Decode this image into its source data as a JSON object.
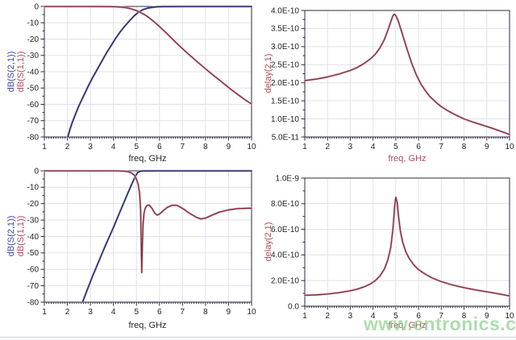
{
  "watermark": {
    "text": "www.cntronics.com",
    "color": "#92d192"
  },
  "palette": {
    "trace_blue": "#23235e",
    "trace_blue_halo": "#a9afd6",
    "trace_red": "#7a3240",
    "trace_red_halo": "#e9b4c1",
    "grid": "#e0e0ee",
    "frame": "#2b2b3d",
    "label_blue": "#4343a8",
    "label_red": "#b04a5a"
  },
  "chart_data": [
    {
      "name": "highpass-s-parameters",
      "type": "line",
      "title": "",
      "xlabel": "freq, GHz",
      "xlabel_color": "dark",
      "ylabels": [
        "dB(S(2,1))",
        "dB(S(1,1))"
      ],
      "xlim": [
        1,
        10
      ],
      "ylim": [
        -80,
        0
      ],
      "grid": true,
      "legend_position": "rotated-y-axis",
      "xticks": [
        {
          "v": 1,
          "label": "1"
        },
        {
          "v": 2,
          "label": "2"
        },
        {
          "v": 3,
          "label": "3"
        },
        {
          "v": 4,
          "label": "4"
        },
        {
          "v": 5,
          "label": "5"
        },
        {
          "v": 6,
          "label": "6"
        },
        {
          "v": 7,
          "label": "7"
        },
        {
          "v": 8,
          "label": "8"
        },
        {
          "v": 9,
          "label": "9"
        },
        {
          "v": 10,
          "label": "10"
        }
      ],
      "yticks": [
        {
          "v": 0,
          "label": "0"
        },
        {
          "v": -10,
          "label": "-10"
        },
        {
          "v": -20,
          "label": "-20"
        },
        {
          "v": -30,
          "label": "-30"
        },
        {
          "v": -40,
          "label": "-40"
        },
        {
          "v": -50,
          "label": "-50"
        },
        {
          "v": -60,
          "label": "-60"
        },
        {
          "v": -70,
          "label": "-70"
        },
        {
          "v": -80,
          "label": "-80"
        }
      ],
      "series": [
        {
          "name": "dB(S(2,1))",
          "color": "#23235e",
          "halo": "#a9afd6",
          "points": [
            [
              2.02,
              -80
            ],
            [
              2.1,
              -76
            ],
            [
              2.2,
              -71.5
            ],
            [
              2.35,
              -66
            ],
            [
              2.5,
              -61
            ],
            [
              2.7,
              -55
            ],
            [
              2.9,
              -49
            ],
            [
              3.1,
              -43.5
            ],
            [
              3.3,
              -38.5
            ],
            [
              3.5,
              -33.5
            ],
            [
              3.7,
              -28.5
            ],
            [
              3.9,
              -24
            ],
            [
              4.1,
              -19.5
            ],
            [
              4.3,
              -15.5
            ],
            [
              4.5,
              -12
            ],
            [
              4.7,
              -8.8
            ],
            [
              4.9,
              -5.8
            ],
            [
              5.1,
              -3.4
            ],
            [
              5.3,
              -1.9
            ],
            [
              5.5,
              -1
            ],
            [
              5.7,
              -0.5
            ],
            [
              5.9,
              -0.2
            ],
            [
              6.2,
              -0.1
            ],
            [
              7,
              -0.05
            ],
            [
              10,
              -0.05
            ]
          ]
        },
        {
          "name": "dB(S(1,1))",
          "color": "#7a3240",
          "halo": "#e9b4c1",
          "points": [
            [
              1,
              -0.05
            ],
            [
              3,
              -0.05
            ],
            [
              3.8,
              -0.1
            ],
            [
              4.1,
              -0.2
            ],
            [
              4.35,
              -0.45
            ],
            [
              4.55,
              -0.8
            ],
            [
              4.75,
              -1.4
            ],
            [
              4.95,
              -2.3
            ],
            [
              5.15,
              -3.5
            ],
            [
              5.35,
              -5
            ],
            [
              5.55,
              -6.9
            ],
            [
              5.75,
              -9.2
            ],
            [
              5.95,
              -11.7
            ],
            [
              6.15,
              -14.3
            ],
            [
              6.35,
              -17
            ],
            [
              6.55,
              -19.8
            ],
            [
              6.8,
              -23.2
            ],
            [
              7.05,
              -26.5
            ],
            [
              7.35,
              -30.3
            ],
            [
              7.65,
              -34
            ],
            [
              8,
              -38.2
            ],
            [
              8.35,
              -42.3
            ],
            [
              8.7,
              -46.2
            ],
            [
              9.05,
              -50.2
            ],
            [
              9.4,
              -54
            ],
            [
              9.7,
              -57
            ],
            [
              10,
              -59.8
            ]
          ]
        }
      ]
    },
    {
      "name": "highpass-group-delay",
      "type": "line",
      "title": "",
      "xlabel": "freq, GHz",
      "xlabel_color": "red",
      "ylabels": [
        "delay(2,1)"
      ],
      "xlim": [
        1,
        10
      ],
      "ylim": [
        5e-11,
        4e-10
      ],
      "grid": true,
      "legend_position": "rotated-y-axis",
      "xticks": [
        {
          "v": 1,
          "label": "1"
        },
        {
          "v": 2,
          "label": "2"
        },
        {
          "v": 3,
          "label": "3"
        },
        {
          "v": 4,
          "label": "4"
        },
        {
          "v": 5,
          "label": "5"
        },
        {
          "v": 6,
          "label": "6"
        },
        {
          "v": 7,
          "label": "7"
        },
        {
          "v": 8,
          "label": "8"
        },
        {
          "v": 9,
          "label": "9"
        },
        {
          "v": 10,
          "label": "10"
        }
      ],
      "yticks": [
        {
          "v": 4e-10,
          "label": "4.0E-10"
        },
        {
          "v": 3.5e-10,
          "label": "3.5E-10"
        },
        {
          "v": 3e-10,
          "label": "3.0E-10"
        },
        {
          "v": 2.5e-10,
          "label": "2.5E-10"
        },
        {
          "v": 2e-10,
          "label": "2.0E-10"
        },
        {
          "v": 1.5e-10,
          "label": "1.5E-10"
        },
        {
          "v": 1e-10,
          "label": "1.0E-10"
        },
        {
          "v": 5e-11,
          "label": "5.0E-11"
        }
      ],
      "series": [
        {
          "name": "delay(2,1)",
          "color": "#7a3240",
          "halo": "#e9b4c1",
          "points": [
            [
              1,
              2.06e-10
            ],
            [
              1.5,
              2.1e-10
            ],
            [
              2,
              2.16e-10
            ],
            [
              2.5,
              2.24e-10
            ],
            [
              3,
              2.34e-10
            ],
            [
              3.3,
              2.42e-10
            ],
            [
              3.6,
              2.53e-10
            ],
            [
              3.9,
              2.67e-10
            ],
            [
              4.1,
              2.79e-10
            ],
            [
              4.3,
              2.96e-10
            ],
            [
              4.5,
              3.2e-10
            ],
            [
              4.65,
              3.45e-10
            ],
            [
              4.77,
              3.67e-10
            ],
            [
              4.87,
              3.85e-10
            ],
            [
              4.93,
              3.9e-10
            ],
            [
              5.0,
              3.86e-10
            ],
            [
              5.1,
              3.73e-10
            ],
            [
              5.2,
              3.53e-10
            ],
            [
              5.35,
              3.22e-10
            ],
            [
              5.5,
              2.92e-10
            ],
            [
              5.7,
              2.54e-10
            ],
            [
              5.9,
              2.22e-10
            ],
            [
              6.1,
              1.97e-10
            ],
            [
              6.3,
              1.78e-10
            ],
            [
              6.5,
              1.62e-10
            ],
            [
              6.8,
              1.44e-10
            ],
            [
              7,
              1.34e-10
            ],
            [
              7.3,
              1.22e-10
            ],
            [
              7.6,
              1.12e-10
            ],
            [
              8,
              1e-10
            ],
            [
              8.4,
              9.1e-11
            ],
            [
              8.8,
              8.3e-11
            ],
            [
              9.2,
              7.5e-11
            ],
            [
              9.6,
              6.6e-11
            ],
            [
              10,
              5.7e-11
            ]
          ]
        }
      ]
    },
    {
      "name": "bandpass-s-parameters",
      "type": "line",
      "title": "",
      "xlabel": "freq, GHz",
      "xlabel_color": "dark",
      "ylabels": [
        "dB(S(2,1))",
        "dB(S(1,1))"
      ],
      "xlim": [
        1,
        10
      ],
      "ylim": [
        -80,
        0
      ],
      "grid": true,
      "legend_position": "rotated-y-axis",
      "xticks": [
        {
          "v": 1,
          "label": "1"
        },
        {
          "v": 2,
          "label": "2"
        },
        {
          "v": 3,
          "label": "3"
        },
        {
          "v": 4,
          "label": "4"
        },
        {
          "v": 5,
          "label": "5"
        },
        {
          "v": 6,
          "label": "6"
        },
        {
          "v": 7,
          "label": "7"
        },
        {
          "v": 8,
          "label": "8"
        },
        {
          "v": 9,
          "label": "9"
        },
        {
          "v": 10,
          "label": "10"
        }
      ],
      "yticks": [
        {
          "v": 0,
          "label": "0"
        },
        {
          "v": -10,
          "label": "-10"
        },
        {
          "v": -20,
          "label": "-20"
        },
        {
          "v": -30,
          "label": "-30"
        },
        {
          "v": -40,
          "label": "-40"
        },
        {
          "v": -50,
          "label": "-50"
        },
        {
          "v": -60,
          "label": "-60"
        },
        {
          "v": -70,
          "label": "-70"
        },
        {
          "v": -80,
          "label": "-80"
        }
      ],
      "series": [
        {
          "name": "dB(S(2,1))",
          "color": "#23235e",
          "halo": "#a9afd6",
          "points": [
            [
              2.66,
              -80
            ],
            [
              2.85,
              -73
            ],
            [
              3.1,
              -64
            ],
            [
              3.4,
              -54
            ],
            [
              3.7,
              -44
            ],
            [
              4.0,
              -34.5
            ],
            [
              4.3,
              -24.5
            ],
            [
              4.6,
              -14.5
            ],
            [
              4.8,
              -8
            ],
            [
              4.95,
              -3.5
            ],
            [
              5.05,
              -1.2
            ],
            [
              5.15,
              -0.3
            ],
            [
              5.3,
              -0.1
            ],
            [
              6,
              -0.05
            ],
            [
              10,
              -0.05
            ]
          ]
        },
        {
          "name": "dB(S(1,1))",
          "color": "#7a3240",
          "halo": "#e9b4c1",
          "points": [
            [
              1,
              -0.05
            ],
            [
              4.2,
              -0.05
            ],
            [
              4.45,
              -0.2
            ],
            [
              4.65,
              -0.6
            ],
            [
              4.8,
              -1.4
            ],
            [
              4.92,
              -2.8
            ],
            [
              5.0,
              -5
            ],
            [
              5.08,
              -8.5
            ],
            [
              5.14,
              -14
            ],
            [
              5.18,
              -24
            ],
            [
              5.21,
              -45
            ],
            [
              5.23,
              -62
            ],
            [
              5.26,
              -45
            ],
            [
              5.29,
              -32
            ],
            [
              5.33,
              -26
            ],
            [
              5.38,
              -22.8
            ],
            [
              5.45,
              -21.2
            ],
            [
              5.55,
              -20.8
            ],
            [
              5.67,
              -22.8
            ],
            [
              5.8,
              -25.8
            ],
            [
              5.9,
              -27
            ],
            [
              6.0,
              -26.4
            ],
            [
              6.15,
              -24.4
            ],
            [
              6.35,
              -22.2
            ],
            [
              6.55,
              -21
            ],
            [
              6.75,
              -21
            ],
            [
              7.0,
              -22.8
            ],
            [
              7.3,
              -25.8
            ],
            [
              7.6,
              -28.3
            ],
            [
              7.8,
              -29.3
            ],
            [
              8.0,
              -28.8
            ],
            [
              8.3,
              -26.9
            ],
            [
              8.6,
              -25.2
            ],
            [
              9.0,
              -23.8
            ],
            [
              9.4,
              -23
            ],
            [
              9.8,
              -22.8
            ],
            [
              10,
              -22.8
            ]
          ]
        }
      ]
    },
    {
      "name": "bandpass-group-delay",
      "type": "line",
      "title": "",
      "xlabel": "freq, GHz",
      "xlabel_color": "red",
      "ylabels": [
        "delay(2,1)"
      ],
      "xlim": [
        1,
        10
      ],
      "ylim": [
        0,
        1e-09
      ],
      "grid": true,
      "legend_position": "rotated-y-axis",
      "xticks": [
        {
          "v": 1,
          "label": "1"
        },
        {
          "v": 2,
          "label": "2"
        },
        {
          "v": 3,
          "label": "3"
        },
        {
          "v": 4,
          "label": "4"
        },
        {
          "v": 5,
          "label": "5"
        },
        {
          "v": 6,
          "label": "6"
        },
        {
          "v": 7,
          "label": "7"
        },
        {
          "v": 8,
          "label": "8"
        },
        {
          "v": 9,
          "label": "9"
        },
        {
          "v": 10,
          "label": "10"
        }
      ],
      "yticks": [
        {
          "v": 1e-09,
          "label": "1.0E-9"
        },
        {
          "v": 8e-10,
          "label": "8.0E-10"
        },
        {
          "v": 6e-10,
          "label": "6.0E-10"
        },
        {
          "v": 4e-10,
          "label": "4.0E-10"
        },
        {
          "v": 2e-10,
          "label": "2.0E-10"
        },
        {
          "v": 0,
          "label": "0.0"
        }
      ],
      "series": [
        {
          "name": "delay(2,1)",
          "color": "#7a3240",
          "halo": "#e9b4c1",
          "points": [
            [
              1,
              8.5e-11
            ],
            [
              1.5,
              8.8e-11
            ],
            [
              2,
              9.5e-11
            ],
            [
              2.5,
              1.05e-10
            ],
            [
              3,
              1.2e-10
            ],
            [
              3.3,
              1.33e-10
            ],
            [
              3.6,
              1.5e-10
            ],
            [
              3.9,
              1.75e-10
            ],
            [
              4.1,
              2e-10
            ],
            [
              4.3,
              2.35e-10
            ],
            [
              4.5,
              2.9e-10
            ],
            [
              4.65,
              3.6e-10
            ],
            [
              4.78,
              4.6e-10
            ],
            [
              4.88,
              6.1e-10
            ],
            [
              4.95,
              7.8e-10
            ],
            [
              5.0,
              8.5e-10
            ],
            [
              5.06,
              8.1e-10
            ],
            [
              5.12,
              7e-10
            ],
            [
              5.2,
              5.9e-10
            ],
            [
              5.3,
              5e-10
            ],
            [
              5.45,
              4.2e-10
            ],
            [
              5.6,
              3.7e-10
            ],
            [
              5.8,
              3.2e-10
            ],
            [
              6.0,
              2.85e-10
            ],
            [
              6.3,
              2.5e-10
            ],
            [
              6.6,
              2.2e-10
            ],
            [
              7.0,
              1.92e-10
            ],
            [
              7.4,
              1.7e-10
            ],
            [
              7.8,
              1.52e-10
            ],
            [
              8.2,
              1.37e-10
            ],
            [
              8.6,
              1.24e-10
            ],
            [
              9.0,
              1.12e-10
            ],
            [
              9.4,
              1e-10
            ],
            [
              9.7,
              9e-11
            ],
            [
              10,
              8e-11
            ]
          ]
        }
      ]
    }
  ]
}
